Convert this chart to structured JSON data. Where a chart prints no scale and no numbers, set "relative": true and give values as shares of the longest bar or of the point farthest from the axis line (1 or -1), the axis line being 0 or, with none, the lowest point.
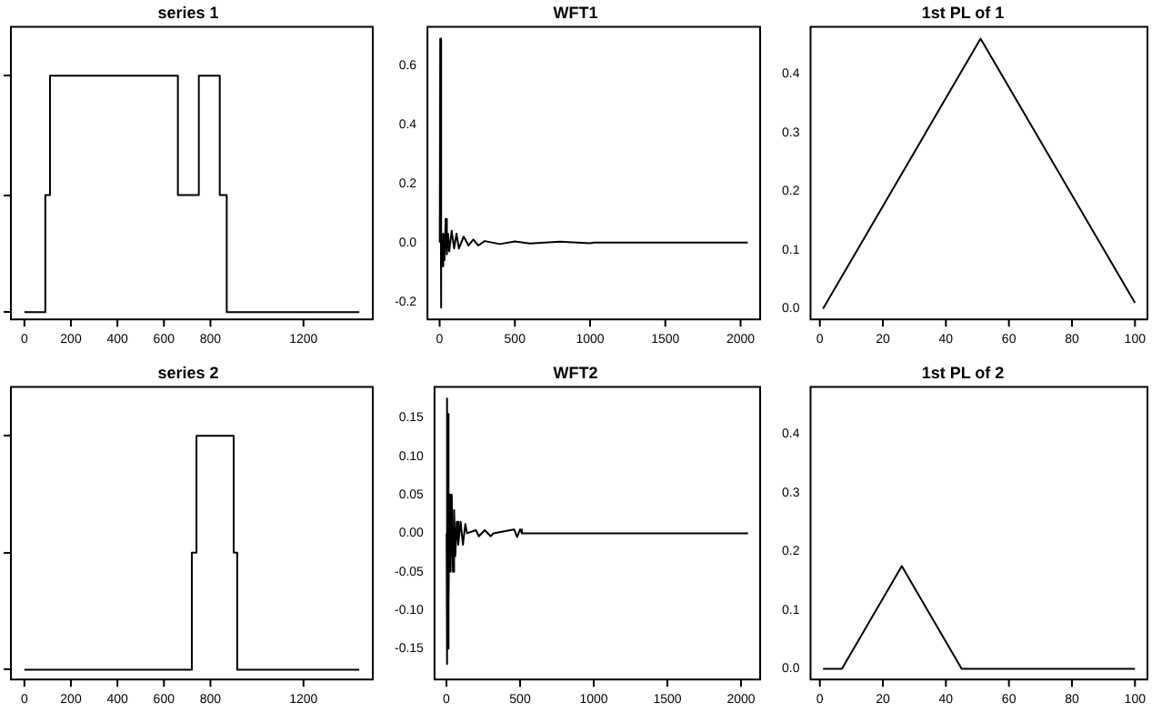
{
  "chart_data": [
    {
      "type": "step",
      "title": "series 1",
      "relative": true,
      "tick_labels": "x",
      "grid": false,
      "legend": false,
      "xlim": [
        -58,
        1498
      ],
      "xticks": [
        0,
        200,
        400,
        600,
        800,
        1200
      ],
      "series": [
        {
          "color": "#000000",
          "x": [
            0,
            90,
            110,
            660,
            750,
            840,
            870,
            1440
          ],
          "values": [
            0.03,
            0.51,
            1,
            0.51,
            1,
            0.51,
            0.03,
            0.03
          ]
        }
      ]
    },
    {
      "type": "line",
      "title": "WFT1",
      "grid": false,
      "legend": false,
      "xlim": [
        -81,
        2130
      ],
      "xticks": [
        0,
        500,
        1000,
        1500,
        2000
      ],
      "ylim": [
        -0.26,
        0.73
      ],
      "yticks": [
        {
          "value": -0.2,
          "label": "-0.2"
        },
        {
          "value": 0,
          "label": "0.0"
        },
        0.2,
        0.4,
        0.6
      ],
      "series": [
        {
          "color": "#000000",
          "x": [
            1,
            4,
            8,
            12,
            16,
            24,
            32,
            40,
            48,
            56,
            64,
            80,
            96,
            112,
            128,
            160,
            192,
            224,
            256,
            300,
            400,
            500,
            600,
            800,
            1000,
            1024,
            2048
          ],
          "values": [
            0,
            0.69,
            -0.22,
            0.05,
            -0.08,
            0.03,
            -0.06,
            0.08,
            -0.04,
            0.03,
            -0.03,
            0.04,
            -0.02,
            0.03,
            -0.02,
            0.02,
            -0.01,
            0.01,
            -0.01,
            0.005,
            -0.005,
            0.004,
            -0.003,
            0.003,
            -0.002,
            0,
            0
          ]
        }
      ]
    },
    {
      "type": "line",
      "title": "1st PL of 1",
      "grid": false,
      "legend": false,
      "xlim": [
        -2.96,
        103.96
      ],
      "xticks": [
        0,
        20,
        40,
        60,
        80,
        100
      ],
      "ylim": [
        -0.018,
        0.48
      ],
      "yticks": [
        {
          "value": 0,
          "label": "0.0"
        },
        0.1,
        0.2,
        0.3,
        0.4
      ],
      "series": [
        {
          "color": "#000000",
          "x": [
            1,
            51,
            100
          ],
          "values": [
            0,
            0.46,
            0.01
          ]
        }
      ]
    },
    {
      "type": "step",
      "title": "series 2",
      "relative": true,
      "tick_labels": "x",
      "grid": false,
      "legend": false,
      "xlim": [
        -58,
        1498
      ],
      "xticks": [
        0,
        200,
        400,
        600,
        800,
        1200
      ],
      "series": [
        {
          "color": "#000000",
          "x": [
            0,
            720,
            740,
            900,
            915,
            1440
          ],
          "values": [
            0.04,
            0.52,
            1,
            0.52,
            0.04,
            0.04
          ]
        }
      ]
    },
    {
      "type": "line",
      "title": "WFT2",
      "grid": false,
      "legend": false,
      "xlim": [
        -81,
        2130
      ],
      "xticks": [
        0,
        500,
        1000,
        1500,
        2000
      ],
      "ylim": [
        -0.19,
        0.19
      ],
      "yticks": [
        {
          "value": -0.15,
          "label": "-0.15"
        },
        {
          "value": -0.1,
          "label": "-0.10"
        },
        {
          "value": -0.05,
          "label": "-0.05"
        },
        {
          "value": 0,
          "label": "0.00"
        },
        0.05,
        {
          "value": 0.1,
          "label": "0.10"
        },
        0.15
      ],
      "series": [
        {
          "color": "#000000",
          "x": [
            1,
            3,
            5,
            8,
            10,
            14,
            18,
            22,
            28,
            36,
            44,
            52,
            60,
            70,
            80,
            96,
            112,
            128,
            140,
            200,
            220,
            260,
            300,
            320,
            460,
            480,
            500,
            512,
            2048
          ],
          "values": [
            0,
            0.175,
            -0.17,
            0.155,
            -0.15,
            0.155,
            -0.09,
            0.05,
            -0.05,
            0.05,
            -0.05,
            0.03,
            -0.03,
            0.015,
            -0.015,
            0.015,
            -0.015,
            0.012,
            0,
            0.004,
            -0.004,
            0.004,
            -0.004,
            0,
            0.005,
            -0.005,
            0.005,
            0,
            0
          ]
        }
      ]
    },
    {
      "type": "line",
      "title": "1st PL of 2",
      "grid": false,
      "legend": false,
      "xlim": [
        -2.96,
        103.96
      ],
      "xticks": [
        0,
        20,
        40,
        60,
        80,
        100
      ],
      "ylim": [
        -0.018,
        0.48
      ],
      "yticks": [
        {
          "value": 0,
          "label": "0.0"
        },
        0.1,
        0.2,
        0.3,
        0.4
      ],
      "series": [
        {
          "color": "#000000",
          "x": [
            1,
            7,
            26,
            45,
            100
          ],
          "values": [
            0,
            0,
            0.175,
            0,
            0
          ]
        }
      ]
    }
  ]
}
